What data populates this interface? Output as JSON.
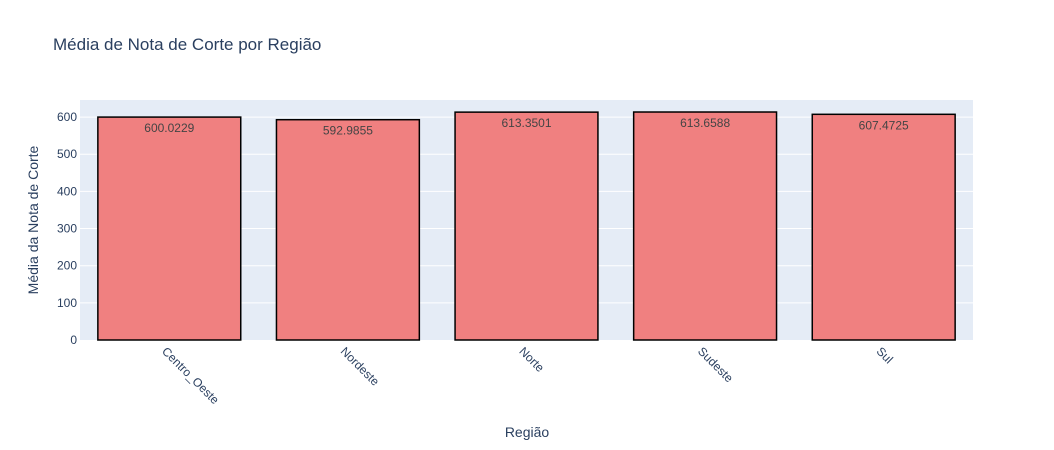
{
  "chart_data": {
    "type": "bar",
    "title": "Média de Nota de Corte por Região",
    "xlabel": "Região",
    "ylabel": "Média da Nota de Corte",
    "categories": [
      "Centro_Oeste",
      "Nordeste",
      "Norte",
      "Sudeste",
      "Sul"
    ],
    "values": [
      600.0229,
      592.9855,
      613.3501,
      613.6588,
      607.4725
    ],
    "value_labels": [
      "600.0229",
      "592.9855",
      "613.3501",
      "613.6588",
      "607.4725"
    ],
    "ylim": [
      0,
      646
    ],
    "yticks": [
      0,
      100,
      200,
      300,
      400,
      500,
      600
    ],
    "ytick_labels": [
      "0",
      "100",
      "200",
      "300",
      "400",
      "500",
      "600"
    ],
    "grid": true,
    "colors": {
      "bar_fill": "#f08080",
      "bar_stroke": "#000000",
      "plot_background": "#e5ecf6",
      "grid": "#ffffff",
      "text": "#2a3f5f"
    }
  }
}
